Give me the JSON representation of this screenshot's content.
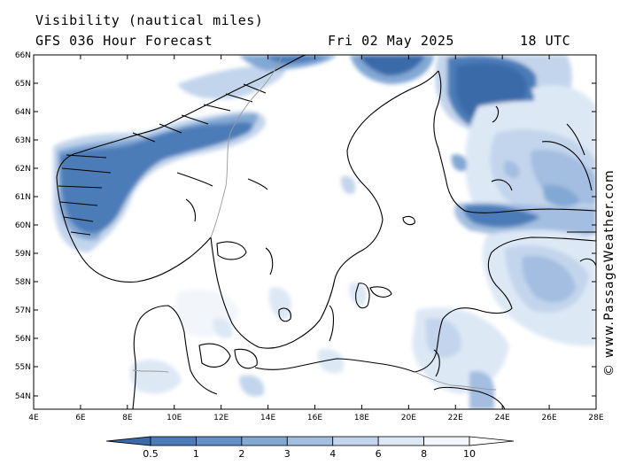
{
  "header": {
    "title_line1": "Visibility (nautical miles)",
    "title_line2": "GFS 036 Hour Forecast",
    "date": "Fri 02 May 2025",
    "time": "18 UTC"
  },
  "credit": "© www.PassageWeather.com",
  "axes": {
    "lat_labels": [
      "66N",
      "65N",
      "64N",
      "63N",
      "62N",
      "61N",
      "60N",
      "59N",
      "58N",
      "57N",
      "56N",
      "55N",
      "54N"
    ],
    "lon_labels": [
      "4E",
      "6E",
      "8E",
      "10E",
      "12E",
      "14E",
      "16E",
      "18E",
      "20E",
      "22E",
      "24E",
      "26E",
      "28E"
    ]
  },
  "colorbar": {
    "labels": [
      "0.5",
      "1",
      "2",
      "3",
      "4",
      "6",
      "8",
      "10"
    ],
    "colors": [
      "#3a6ba8",
      "#4b7cb8",
      "#6390c6",
      "#82a8d4",
      "#a3bee0",
      "#c3d5ec",
      "#dde8f5",
      "#f2f6fb",
      "#ffffff"
    ]
  },
  "colors": {
    "land_line": "#000000",
    "border_line": "#9a9a9a",
    "background": "#ffffff"
  }
}
